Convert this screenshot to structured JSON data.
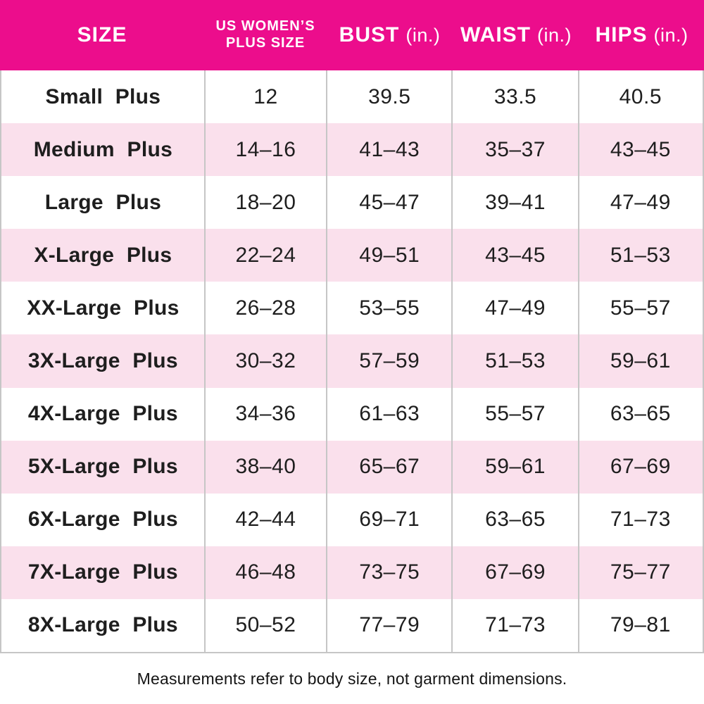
{
  "colors": {
    "header_bg": "#EC0D8C",
    "header_text": "#FFFFFF",
    "row_alt_bg": "#FAE0EC",
    "divider": "#C6C6C6",
    "body_text": "#1E1E1E"
  },
  "header": {
    "col1": {
      "label": "SIZE"
    },
    "col2": {
      "line1": "US WOMEN’S",
      "line2": "PLUS SIZE"
    },
    "col3": {
      "label": "BUST",
      "unit": "(in.)"
    },
    "col4": {
      "label": "WAIST",
      "unit": "(in.)"
    },
    "col5": {
      "label": "HIPS",
      "unit": "(in.)"
    }
  },
  "chart_data": {
    "type": "table",
    "columns": [
      "SIZE",
      "US WOMEN’S PLUS SIZE",
      "BUST (in.)",
      "WAIST (in.)",
      "HIPS (in.)"
    ],
    "rows": [
      [
        "Small Plus",
        "12",
        "39.5",
        "33.5",
        "40.5"
      ],
      [
        "Medium Plus",
        "14–16",
        "41–43",
        "35–37",
        "43–45"
      ],
      [
        "Large Plus",
        "18–20",
        "45–47",
        "39–41",
        "47–49"
      ],
      [
        "X-Large Plus",
        "22–24",
        "49–51",
        "43–45",
        "51–53"
      ],
      [
        "XX-Large Plus",
        "26–28",
        "53–55",
        "47–49",
        "55–57"
      ],
      [
        "3X-Large Plus",
        "30–32",
        "57–59",
        "51–53",
        "59–61"
      ],
      [
        "4X-Large Plus",
        "34–36",
        "61–63",
        "55–57",
        "63–65"
      ],
      [
        "5X-Large Plus",
        "38–40",
        "65–67",
        "59–61",
        "67–69"
      ],
      [
        "6X-Large Plus",
        "42–44",
        "69–71",
        "63–65",
        "71–73"
      ],
      [
        "7X-Large Plus",
        "46–48",
        "73–75",
        "67–69",
        "75–77"
      ],
      [
        "8X-Large Plus",
        "50–52",
        "77–79",
        "71–73",
        "79–81"
      ]
    ]
  },
  "footer": {
    "note": "Measurements refer to body size, not garment dimensions."
  }
}
